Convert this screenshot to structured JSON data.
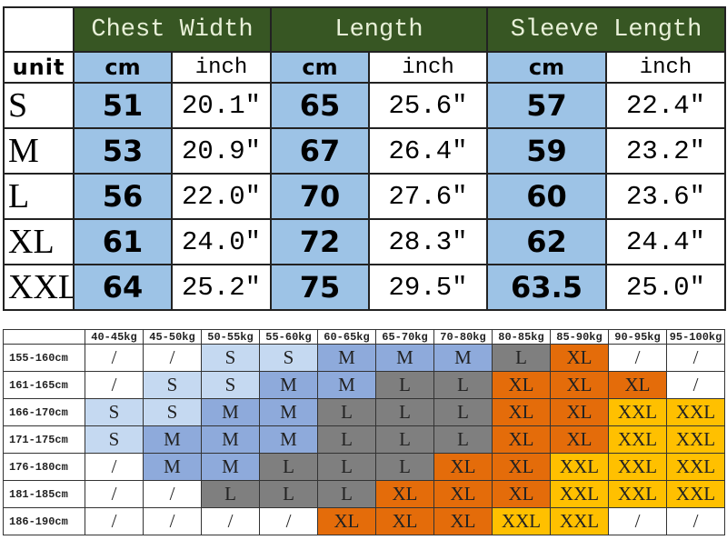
{
  "size_chart": {
    "groups": [
      "Chest Width",
      "Length",
      "Sleeve Length"
    ],
    "unit_label": "unit",
    "unit_cm": "cm",
    "unit_inch": "inch",
    "rows": [
      {
        "size": "S",
        "values": [
          "51",
          "20.1\"",
          "65",
          "25.6\"",
          "57",
          "22.4\""
        ]
      },
      {
        "size": "M",
        "values": [
          "53",
          "20.9\"",
          "67",
          "26.4\"",
          "59",
          "23.2\""
        ]
      },
      {
        "size": "L",
        "values": [
          "56",
          "22.0\"",
          "70",
          "27.6\"",
          "60",
          "23.6\""
        ]
      },
      {
        "size": "XL",
        "values": [
          "61",
          "24.0\"",
          "72",
          "28.3\"",
          "62",
          "24.4\""
        ]
      },
      {
        "size": "XXL",
        "values": [
          "64",
          "25.2\"",
          "75",
          "29.5\"",
          "63.5",
          "25.0\""
        ]
      }
    ]
  },
  "fit_chart": {
    "weights": [
      "40-45kg",
      "45-50kg",
      "50-55kg",
      "55-60kg",
      "60-65kg",
      "65-70kg",
      "70-80kg",
      "80-85kg",
      "85-90kg",
      "90-95kg",
      "95-100kg"
    ],
    "rows": [
      {
        "height": "155-160cm",
        "sizes": [
          "/",
          "/",
          "S",
          "S",
          "M",
          "M",
          "M",
          "L",
          "XL",
          "/",
          "/"
        ]
      },
      {
        "height": "161-165cm",
        "sizes": [
          "/",
          "S",
          "S",
          "M",
          "M",
          "L",
          "L",
          "XL",
          "XL",
          "XL",
          "/"
        ]
      },
      {
        "height": "166-170cm",
        "sizes": [
          "S",
          "S",
          "M",
          "M",
          "L",
          "L",
          "L",
          "XL",
          "XL",
          "XXL",
          "XXL"
        ]
      },
      {
        "height": "171-175cm",
        "sizes": [
          "S",
          "M",
          "M",
          "M",
          "L",
          "L",
          "L",
          "XL",
          "XL",
          "XXL",
          "XXL"
        ]
      },
      {
        "height": "176-180cm",
        "sizes": [
          "/",
          "M",
          "M",
          "L",
          "L",
          "L",
          "XL",
          "XL",
          "XXL",
          "XXL",
          "XXL"
        ]
      },
      {
        "height": "181-185cm",
        "sizes": [
          "/",
          "/",
          "L",
          "L",
          "L",
          "XL",
          "XL",
          "XL",
          "XXL",
          "XXL",
          "XXL"
        ]
      },
      {
        "height": "186-190cm",
        "sizes": [
          "/",
          "/",
          "/",
          "/",
          "XL",
          "XL",
          "XL",
          "XXL",
          "XXL",
          "/",
          "/"
        ]
      }
    ],
    "colors": {
      "S": "#c5d9f1",
      "M": "#8eaadb",
      "L": "#7f7f7f",
      "XL": "#e46c0a",
      "XXL": "#ffc000",
      "/": "#ffffff"
    }
  }
}
